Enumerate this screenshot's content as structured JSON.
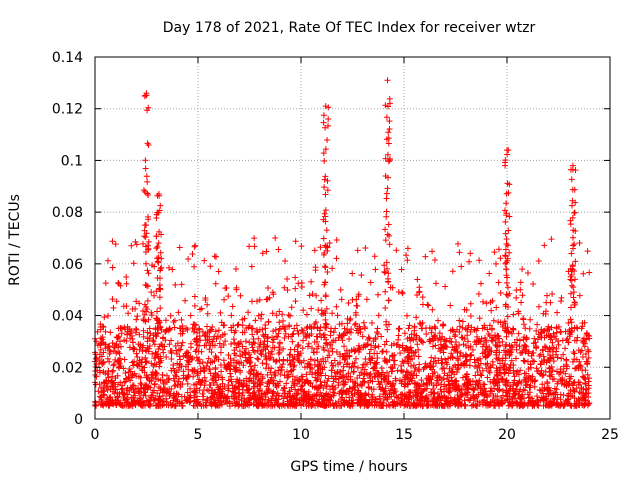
{
  "chart_data": {
    "type": "scatter",
    "title": "Day 178 of 2021, Rate Of TEC Index for receiver wtzr",
    "xlabel": "GPS time / hours",
    "ylabel": "ROTI / TECUs",
    "xlim": [
      0,
      25
    ],
    "ylim": [
      0,
      0.14
    ],
    "xticks": [
      0,
      5,
      10,
      15,
      20,
      25
    ],
    "xtick_labels": [
      "0",
      "5",
      "10",
      "15",
      "20",
      "25"
    ],
    "yticks": [
      0,
      0.02,
      0.04,
      0.06,
      0.08,
      0.1,
      0.12,
      0.14
    ],
    "ytick_labels": [
      "0",
      "0.02",
      "0.04",
      "0.06",
      "0.08",
      "0.1",
      "0.12",
      "0.14"
    ],
    "grid": true,
    "marker": "plus",
    "color": "#ff0000",
    "data_range_hours": [
      0,
      24
    ],
    "notable_peaks": [
      {
        "x": 2.5,
        "y": 0.126
      },
      {
        "x": 3.1,
        "y": 0.087
      },
      {
        "x": 11.2,
        "y": 0.121
      },
      {
        "x": 14.2,
        "y": 0.131
      },
      {
        "x": 20.0,
        "y": 0.104
      },
      {
        "x": 23.2,
        "y": 0.098
      }
    ],
    "typical_band": [
      0.005,
      0.035
    ]
  }
}
